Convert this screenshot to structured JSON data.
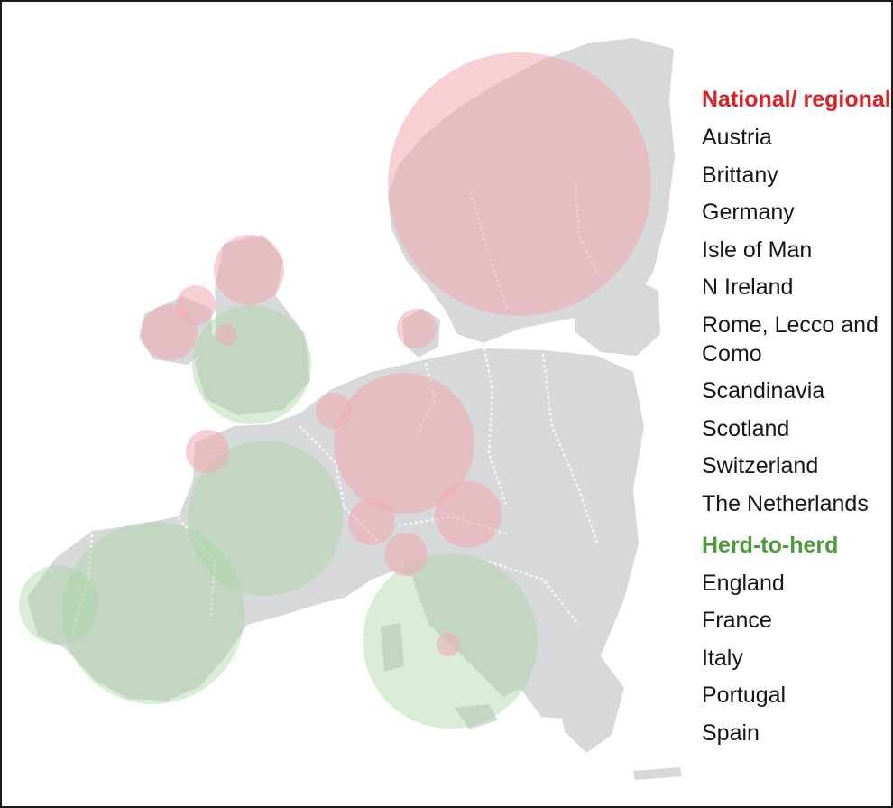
{
  "colors": {
    "land": "#d7d8da",
    "border": "#f5f5f5",
    "national_fill": "#f0a9b2",
    "herd_fill": "#a9d4a3",
    "national_heading": "#d8232a",
    "herd_heading": "#4e9a3a"
  },
  "legend": {
    "national": {
      "heading": "National/ regional",
      "items": [
        "Austria",
        "Brittany",
        "Germany",
        "Isle of Man",
        "N Ireland",
        "Rome, Lecco and Como",
        "Scandinavia",
        "Scotland",
        "Switzerland",
        "The Netherlands"
      ]
    },
    "herd": {
      "heading": "Herd-to-herd",
      "items": [
        "England",
        "France",
        "Italy",
        "Portugal",
        "Spain"
      ]
    }
  }
}
